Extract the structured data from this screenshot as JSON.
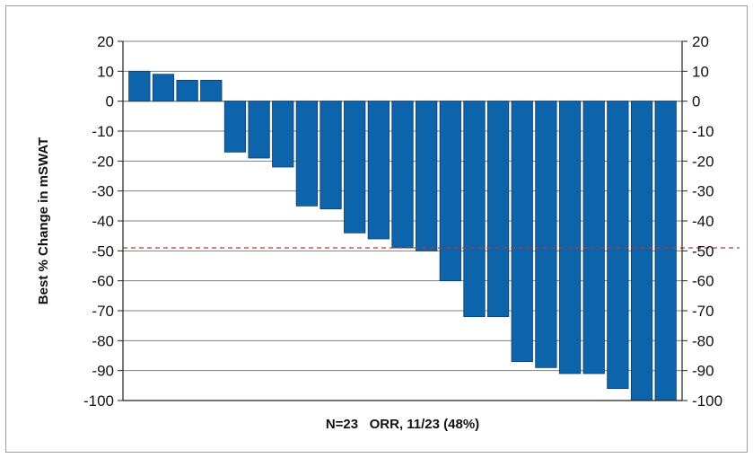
{
  "chart_data": {
    "type": "bar",
    "xlabel": "N=23   ORR, 11/23 (48%)",
    "ylabel": "Best % Change in mSWAT",
    "ylim": [
      -100,
      20
    ],
    "yticks": [
      "20",
      "10",
      "0",
      "-10",
      "-20",
      "-30",
      "-40",
      "-50",
      "-60",
      "-70",
      "-80",
      "-90",
      "-100"
    ],
    "ytick_values": [
      20,
      10,
      0,
      -10,
      -20,
      -30,
      -40,
      -50,
      -60,
      -70,
      -80,
      -90,
      -100
    ],
    "values": [
      10,
      9,
      7,
      7,
      -17,
      -19,
      -22,
      -35,
      -36,
      -44,
      -46,
      -49,
      -50,
      -60,
      -72,
      -72,
      -87,
      -89,
      -91,
      -91,
      -96,
      -100,
      -100
    ],
    "reference_line": {
      "value": -49,
      "style": "dashed",
      "color": "#c0392b"
    },
    "grid": true,
    "legend": "none",
    "colors": {
      "bar": "#0e64aa",
      "bar_edge": "#0a3f70",
      "grid": "#808080",
      "axis": "#222222"
    }
  }
}
